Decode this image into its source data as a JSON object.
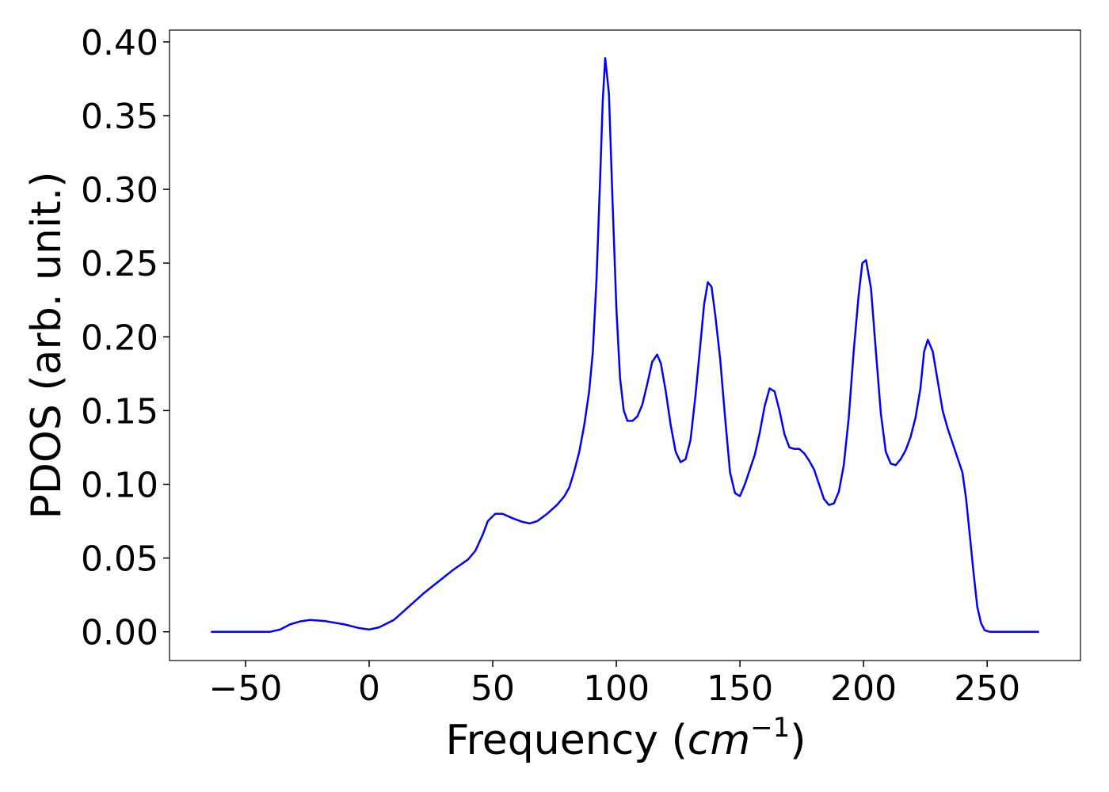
{
  "chart_data": {
    "type": "line",
    "xlabel": [
      "Frequency (",
      "cm",
      "−1",
      ")"
    ],
    "ylabel": "PDOS (arb. unit.)",
    "xlim": [
      -80.75,
      287.75
    ],
    "ylim": [
      -0.0195,
      0.408
    ],
    "xticks": [
      {
        "value": -50,
        "label": "−50"
      },
      0,
      50,
      100,
      150,
      200,
      250
    ],
    "yticks": [
      {
        "value": 0,
        "label": "0.00"
      },
      {
        "value": 0.05,
        "label": "0.05"
      },
      {
        "value": 0.1,
        "label": "0.10"
      },
      {
        "value": 0.15,
        "label": "0.15"
      },
      {
        "value": 0.2,
        "label": "0.20"
      },
      {
        "value": 0.25,
        "label": "0.25"
      },
      {
        "value": 0.3,
        "label": "0.30"
      },
      {
        "value": 0.35,
        "label": "0.35"
      },
      {
        "value": 0.4,
        "label": "0.40"
      }
    ],
    "grid": false,
    "series": [
      {
        "color": "#0000ff",
        "x": [
          -64,
          -40,
          -36,
          -32,
          -28,
          -24,
          -18,
          -10,
          -4,
          0,
          4,
          10,
          16,
          22,
          28,
          34,
          40,
          43,
          46,
          48,
          51,
          54,
          58,
          62,
          65,
          68,
          72,
          76,
          79,
          81,
          83,
          85,
          87,
          89,
          90.5,
          92,
          93.5,
          94.5,
          95.5,
          97,
          98.5,
          100,
          101.5,
          103,
          104.5,
          106.5,
          108.5,
          110.5,
          112.5,
          114.5,
          116.5,
          118,
          120,
          122,
          124,
          126,
          128,
          130,
          132,
          134,
          135.5,
          137,
          138.5,
          140,
          142,
          144,
          146,
          148,
          150,
          152,
          154,
          156,
          158,
          160,
          162,
          164,
          166,
          168,
          170,
          172,
          174,
          176,
          178,
          180,
          182,
          184,
          186,
          188,
          190,
          192,
          194,
          196,
          198,
          199.5,
          201,
          203,
          205,
          207,
          209,
          211,
          213,
          215,
          217,
          219,
          221,
          223,
          224.5,
          226,
          228,
          230,
          232,
          234,
          236,
          238,
          240,
          241.5,
          243,
          244.5,
          246,
          247.5,
          249,
          251,
          271
        ],
        "values": [
          0,
          0,
          0.0015,
          0.005,
          0.007,
          0.008,
          0.0073,
          0.005,
          0.0025,
          0.0015,
          0.003,
          0.008,
          0.017,
          0.026,
          0.034,
          0.042,
          0.049,
          0.055,
          0.066,
          0.075,
          0.08,
          0.08,
          0.077,
          0.0745,
          0.0735,
          0.075,
          0.08,
          0.086,
          0.092,
          0.098,
          0.109,
          0.122,
          0.14,
          0.163,
          0.19,
          0.24,
          0.31,
          0.36,
          0.389,
          0.365,
          0.29,
          0.22,
          0.172,
          0.15,
          0.143,
          0.143,
          0.146,
          0.154,
          0.168,
          0.183,
          0.188,
          0.182,
          0.163,
          0.14,
          0.122,
          0.115,
          0.117,
          0.13,
          0.16,
          0.195,
          0.222,
          0.237,
          0.234,
          0.215,
          0.185,
          0.145,
          0.108,
          0.094,
          0.092,
          0.1,
          0.11,
          0.12,
          0.135,
          0.153,
          0.165,
          0.163,
          0.15,
          0.134,
          0.125,
          0.124,
          0.124,
          0.121,
          0.116,
          0.11,
          0.1,
          0.09,
          0.086,
          0.087,
          0.095,
          0.113,
          0.145,
          0.19,
          0.228,
          0.25,
          0.252,
          0.233,
          0.19,
          0.148,
          0.122,
          0.114,
          0.113,
          0.117,
          0.123,
          0.132,
          0.145,
          0.165,
          0.19,
          0.198,
          0.19,
          0.17,
          0.15,
          0.138,
          0.128,
          0.118,
          0.108,
          0.09,
          0.065,
          0.04,
          0.017,
          0.006,
          0.001,
          0,
          0
        ]
      }
    ]
  }
}
